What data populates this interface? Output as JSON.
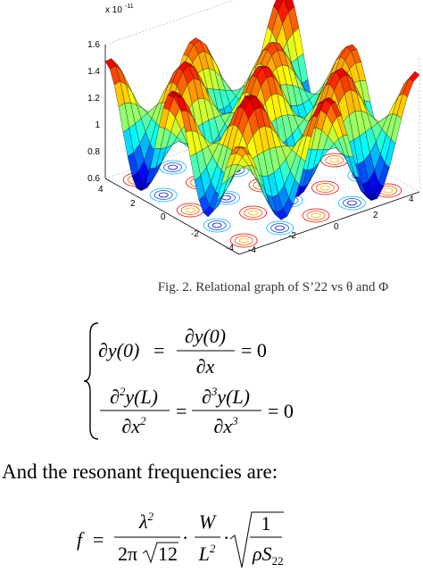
{
  "figure": {
    "z_multiplier": "x 10",
    "z_exponent": "-11",
    "zticks": [
      "1.6",
      "1.4",
      "1.2",
      "1",
      "0.8",
      "0.6"
    ],
    "left_axis_ticks": [
      "4",
      "2",
      "0",
      "-2",
      "-4"
    ],
    "right_axis_ticks": [
      "-4",
      "-2",
      "0",
      "2",
      "4"
    ],
    "caption": "Fig. 2.  Relational graph of S’22 vs θ and Φ"
  },
  "equation_system": {
    "line1": {
      "lhs": "∂y(0)",
      "eq1": "=",
      "num": "∂y(0)",
      "den": "∂x",
      "eq2": "= 0"
    },
    "line2": {
      "num1_d": "∂",
      "num1_p": "2",
      "num1_f": "y(L)",
      "den1": "∂x",
      "den1_p": "2",
      "eq1": "=",
      "num2_d": "∂",
      "num2_p": "3",
      "num2_f": "y(L)",
      "den2": "∂x",
      "den2_p": "3",
      "eq2": "= 0"
    }
  },
  "paragraph": "And the resonant frequencies are:",
  "formula": {
    "lhs": "f",
    "eq": "=",
    "n1": "λ",
    "n1_p": "2",
    "d1_a": "2π",
    "d1_b": "12",
    "dot1": "·",
    "n2": "W",
    "d2": "L",
    "d2_p": "2",
    "dot2": "·",
    "n3": "1",
    "d3": "ρS",
    "d3_sub": "22"
  }
}
